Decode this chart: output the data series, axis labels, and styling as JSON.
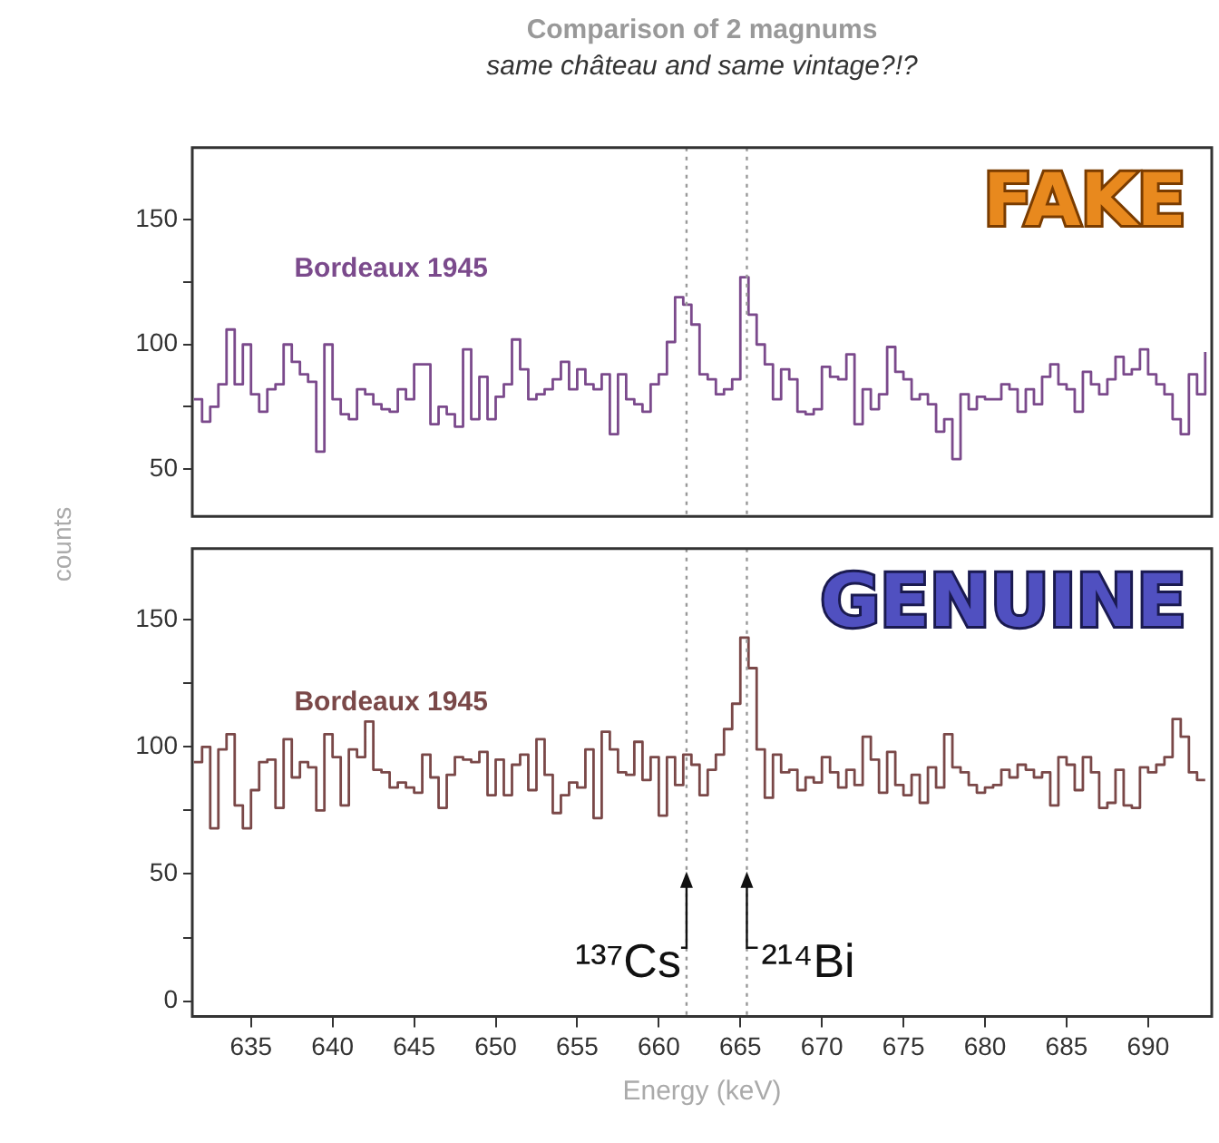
{
  "chart_data": [
    {
      "type": "step",
      "title": "Comparison of 2 magnums",
      "subtitle": "same château and same vintage?!?",
      "ylabel": "counts",
      "x": [
        631.5,
        632,
        632.5,
        633,
        633.5,
        634,
        634.5,
        635,
        635.5,
        636,
        636.5,
        637,
        637.5,
        638,
        638.5,
        639,
        639.5,
        640,
        640.5,
        641,
        641.5,
        642,
        642.5,
        643,
        643.5,
        644,
        644.5,
        645,
        645.5,
        646,
        646.5,
        647,
        647.5,
        648,
        648.5,
        649,
        649.5,
        650,
        650.5,
        651,
        651.5,
        652,
        652.5,
        653,
        653.5,
        654,
        654.5,
        655,
        655.5,
        656,
        656.5,
        657,
        657.5,
        658,
        658.5,
        659,
        659.5,
        660,
        660.5,
        661,
        661.5,
        662,
        662.5,
        663,
        663.5,
        664,
        664.5,
        665,
        665.5,
        666,
        666.5,
        667,
        667.5,
        668,
        668.5,
        669,
        669.5,
        670,
        670.5,
        671,
        671.5,
        672,
        672.5,
        673,
        673.5,
        674,
        674.5,
        675,
        675.5,
        676,
        676.5,
        677,
        677.5,
        678,
        678.5,
        679,
        679.5,
        680,
        680.5,
        681,
        681.5,
        682,
        682.5,
        683,
        683.5,
        684,
        684.5,
        685,
        685.5,
        686,
        686.5,
        687,
        687.5,
        688,
        688.5,
        689,
        689.5,
        690,
        690.5,
        691,
        691.5,
        692,
        692.5,
        693,
        693.5
      ],
      "series": [
        {
          "name": "Bordeaux 1945",
          "color": "#7b4a8c",
          "values": [
            78,
            69,
            75,
            84,
            106,
            84,
            100,
            80,
            73,
            82,
            84,
            100,
            93,
            88,
            85,
            57,
            100,
            78,
            72,
            70,
            82,
            80,
            76,
            74,
            73,
            82,
            78,
            92,
            92,
            68,
            75,
            72,
            67,
            98,
            70,
            87,
            70,
            79,
            84,
            102,
            90,
            78,
            80,
            82,
            86,
            93,
            82,
            90,
            84,
            82,
            88,
            64,
            88,
            78,
            76,
            73,
            84,
            88,
            101,
            119,
            116,
            108,
            88,
            86,
            80,
            82,
            86,
            127,
            112,
            100,
            92,
            78,
            90,
            86,
            73,
            72,
            74,
            91,
            87,
            86,
            96,
            68,
            82,
            74,
            80,
            99,
            89,
            86,
            78,
            80,
            76,
            65,
            70,
            54,
            80,
            74,
            79,
            78,
            78,
            84,
            82,
            73,
            82,
            76,
            87,
            92,
            84,
            82,
            73,
            89,
            84,
            80,
            86,
            95,
            88,
            90,
            98,
            88,
            84,
            80,
            70,
            64,
            88,
            80,
            97
          ]
        }
      ],
      "xlim": [
        631.4,
        693.9
      ],
      "ylim": [
        31,
        179
      ],
      "xticks": [
        635,
        640,
        645,
        650,
        655,
        660,
        665,
        670,
        675,
        680,
        685,
        690
      ],
      "yticks": [
        50,
        {
          "value": 75,
          "label": null
        },
        100,
        {
          "value": 125,
          "label": null
        },
        150
      ],
      "tick_labels": "y",
      "ref_lines": [
        {
          "axis": "x",
          "value": 661.7,
          "color": "#999999",
          "line_style": "dotted"
        },
        {
          "axis": "x",
          "value": 665.4,
          "color": "#999999",
          "line_style": "dotted"
        }
      ],
      "annotations": [
        "FAKE"
      ]
    },
    {
      "type": "step",
      "xlabel": "Energy (keV)",
      "x": [
        631.5,
        632,
        632.5,
        633,
        633.5,
        634,
        634.5,
        635,
        635.5,
        636,
        636.5,
        637,
        637.5,
        638,
        638.5,
        639,
        639.5,
        640,
        640.5,
        641,
        641.5,
        642,
        642.5,
        643,
        643.5,
        644,
        644.5,
        645,
        645.5,
        646,
        646.5,
        647,
        647.5,
        648,
        648.5,
        649,
        649.5,
        650,
        650.5,
        651,
        651.5,
        652,
        652.5,
        653,
        653.5,
        654,
        654.5,
        655,
        655.5,
        656,
        656.5,
        657,
        657.5,
        658,
        658.5,
        659,
        659.5,
        660,
        660.5,
        661,
        661.5,
        662,
        662.5,
        663,
        663.5,
        664,
        664.5,
        665,
        665.5,
        666,
        666.5,
        667,
        667.5,
        668,
        668.5,
        669,
        669.5,
        670,
        670.5,
        671,
        671.5,
        672,
        672.5,
        673,
        673.5,
        674,
        674.5,
        675,
        675.5,
        676,
        676.5,
        677,
        677.5,
        678,
        678.5,
        679,
        679.5,
        680,
        680.5,
        681,
        681.5,
        682,
        682.5,
        683,
        683.5,
        684,
        684.5,
        685,
        685.5,
        686,
        686.5,
        687,
        687.5,
        688,
        688.5,
        689,
        689.5,
        690,
        690.5,
        691,
        691.5,
        692,
        692.5,
        693,
        693.5
      ],
      "series": [
        {
          "name": "Bordeaux 1945",
          "color": "#7a4848",
          "values": [
            94,
            100,
            68,
            99,
            105,
            77,
            68,
            83,
            94,
            95,
            76,
            103,
            88,
            94,
            92,
            75,
            105,
            96,
            77,
            99,
            96,
            110,
            91,
            90,
            84,
            86,
            84,
            82,
            97,
            88,
            76,
            89,
            96,
            95,
            94,
            98,
            81,
            95,
            81,
            93,
            97,
            83,
            103,
            89,
            74,
            81,
            86,
            84,
            99,
            72,
            106,
            99,
            90,
            89,
            102,
            87,
            96,
            73,
            96,
            85,
            97,
            93,
            81,
            91,
            97,
            107,
            117,
            143,
            131,
            99,
            80,
            97,
            90,
            91,
            83,
            88,
            86,
            96,
            90,
            84,
            91,
            85,
            104,
            95,
            82,
            98,
            85,
            81,
            89,
            78,
            92,
            84,
            105,
            92,
            90,
            85,
            82,
            84,
            85,
            91,
            88,
            93,
            91,
            88,
            90,
            77,
            96,
            93,
            83,
            96,
            90,
            76,
            78,
            91,
            77,
            76,
            92,
            90,
            93,
            96,
            111,
            104,
            90,
            87,
            87
          ]
        }
      ],
      "xlim": [
        631.4,
        693.9
      ],
      "ylim": [
        -6,
        178
      ],
      "xticks": [
        635,
        640,
        645,
        650,
        655,
        660,
        665,
        670,
        675,
        680,
        685,
        690
      ],
      "yticks": [
        0,
        {
          "value": 25,
          "label": null
        },
        50,
        {
          "value": 75,
          "label": null
        },
        100,
        {
          "value": 125,
          "label": null
        },
        150
      ],
      "ref_lines": [
        {
          "axis": "x",
          "value": 661.7,
          "color": "#999999",
          "line_style": "dotted"
        },
        {
          "axis": "x",
          "value": 665.4,
          "color": "#999999",
          "line_style": "dotted"
        }
      ],
      "annotations": [
        "GENUINE",
        {
          "text": "¹³⁷Cs",
          "x": 661.7,
          "y": 21
        },
        {
          "text": "²¹⁴Bi",
          "x": 665.4,
          "y": 21
        }
      ]
    }
  ]
}
